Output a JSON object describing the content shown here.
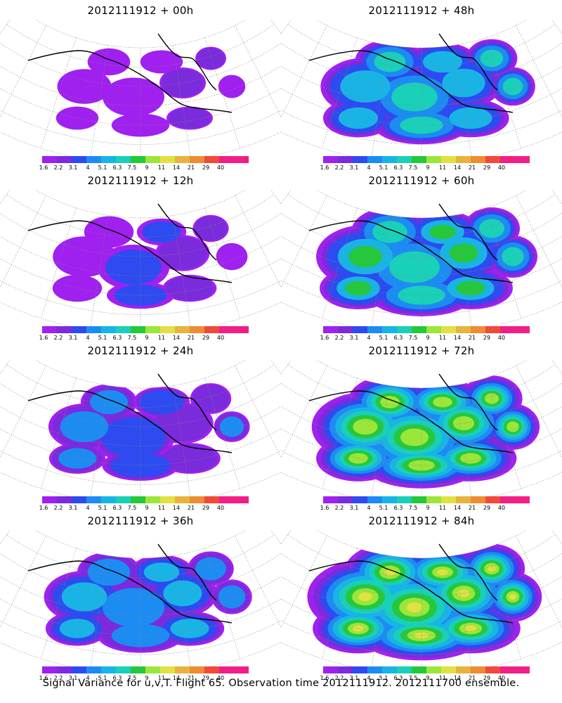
{
  "caption": "Signal Variance for u,v,T. Flight 65. Observation time 2012111912. 2012111700 ensemble.",
  "colorbar": {
    "labels": [
      "1.6",
      "2.2",
      "3.1",
      "4",
      "5.1",
      "6.3",
      "7.5",
      "9",
      "11",
      "14",
      "21",
      "29",
      "40"
    ],
    "colors": [
      "#a020f0",
      "#7a2bdc",
      "#2d4bf0",
      "#1c8cf2",
      "#19b4e6",
      "#19d0b8",
      "#25c83a",
      "#9be63a",
      "#e1e141",
      "#e6b33c",
      "#ee8b33",
      "#f04a3a",
      "#f21e86"
    ]
  },
  "panels": [
    {
      "title": "2012111912 + 00h",
      "intensity": 0
    },
    {
      "title": "2012111912 + 48h",
      "intensity": 4
    },
    {
      "title": "2012111912 + 12h",
      "intensity": 1
    },
    {
      "title": "2012111912 + 60h",
      "intensity": 5
    },
    {
      "title": "2012111912 + 24h",
      "intensity": 2
    },
    {
      "title": "2012111912 + 72h",
      "intensity": 6
    },
    {
      "title": "2012111912 + 36h",
      "intensity": 3
    },
    {
      "title": "2012111912 + 84h",
      "intensity": 7
    }
  ]
}
